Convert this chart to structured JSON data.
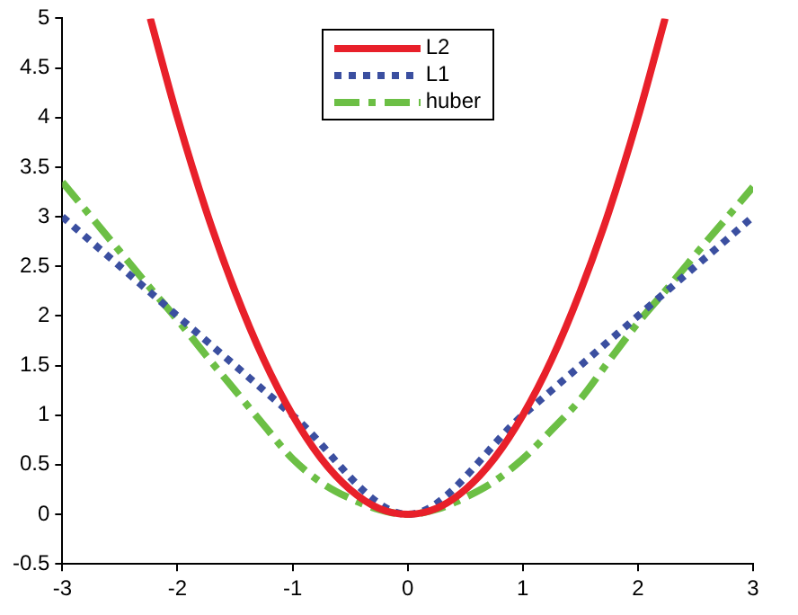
{
  "chart_data": {
    "type": "line",
    "xlim": [
      -3,
      3
    ],
    "xticks": [
      -3,
      -2,
      -1,
      0,
      1,
      2,
      3
    ],
    "ylim": [
      -0.5,
      5
    ],
    "yticks": [
      -0.5,
      0,
      0.5,
      1,
      1.5,
      2,
      2.5,
      3,
      3.5,
      4,
      4.5,
      5
    ],
    "grid": false,
    "legend": "top",
    "marker": "none",
    "series": [
      {
        "name": "L2",
        "color": "#e8202a",
        "line_style": "solid",
        "x": [
          -2.236,
          -2,
          -1.75,
          -1.5,
          -1.25,
          -1,
          -0.75,
          -0.5,
          -0.25,
          0,
          0.25,
          0.5,
          0.75,
          1,
          1.25,
          1.5,
          1.75,
          2,
          2.236
        ],
        "values": [
          5,
          4,
          3.06,
          2.25,
          1.56,
          1,
          0.56,
          0.25,
          0.06,
          0,
          0.06,
          0.25,
          0.56,
          1,
          1.56,
          2.25,
          3.06,
          4,
          5
        ]
      },
      {
        "name": "L1",
        "color": "#3b4fa0",
        "line_style": "dotted",
        "x": [
          -3,
          -2,
          -1,
          0,
          1,
          2,
          3
        ],
        "values": [
          3,
          2,
          1,
          0,
          1,
          2,
          3
        ]
      },
      {
        "name": "huber",
        "color": "#6cbf45",
        "line_style": "dashed",
        "x": [
          -3,
          -2.75,
          -2.5,
          -2.25,
          -2,
          -1.75,
          -1.5,
          -1.25,
          -1,
          -0.75,
          -0.5,
          -0.25,
          0,
          0.25,
          0.5,
          0.75,
          1,
          1.25,
          1.5,
          1.75,
          2,
          2.25,
          2.5,
          2.75,
          3
        ],
        "values": [
          3.35,
          3,
          2.65,
          2.3,
          1.96,
          1.6,
          1.25,
          0.9,
          0.56,
          0.32,
          0.16,
          0.05,
          0,
          0.05,
          0.17,
          0.33,
          0.56,
          0.85,
          1.16,
          1.55,
          1.93,
          2.27,
          2.62,
          2.96,
          3.3
        ]
      }
    ]
  }
}
